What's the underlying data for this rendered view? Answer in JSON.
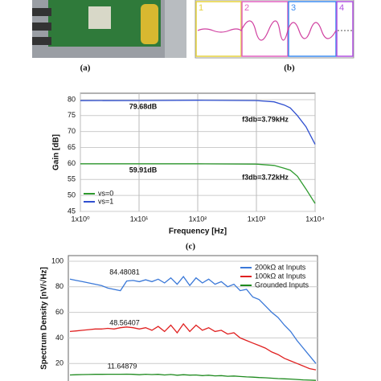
{
  "figure": {
    "panel_labels": [
      "(a)",
      "(b)",
      "(c)"
    ],
    "scope_channels": [
      {
        "label": "1",
        "color": "#e6d23c"
      },
      {
        "label": "2",
        "color": "#e060c0"
      },
      {
        "label": "3",
        "color": "#3c8cf0"
      },
      {
        "label": "4",
        "color": "#b050e0"
      }
    ]
  },
  "chart_data": [
    {
      "type": "line",
      "y_label": "Gain [dB]",
      "x_label": "Frequency [Hz]",
      "log_x": true,
      "grid": true,
      "x": [
        1,
        10,
        100,
        1000,
        2000,
        3000,
        3790,
        5000,
        7000,
        10000
      ],
      "series": [
        {
          "name": "vs=0",
          "color": "#2e9a2e",
          "values": [
            59.91,
            59.9,
            59.9,
            59.8,
            59.4,
            58.5,
            57.9,
            56,
            52,
            47.5
          ]
        },
        {
          "name": "vs=1",
          "color": "#3050d0",
          "values": [
            79.68,
            79.7,
            79.8,
            79.7,
            79.3,
            78.3,
            77.4,
            75,
            71.5,
            66
          ]
        }
      ],
      "xlim": [
        1,
        10000
      ],
      "xticks": [
        {
          "value": 1,
          "label": "1x10⁰"
        },
        {
          "value": 10,
          "label": "1x10¹"
        },
        {
          "value": 100,
          "label": "1x10²"
        },
        {
          "value": 1000,
          "label": "1x10³"
        },
        {
          "value": 10000,
          "label": "1x10⁴"
        }
      ],
      "ylim": [
        45,
        82
      ],
      "yticks": [
        45,
        50,
        55,
        60,
        65,
        70,
        75,
        80
      ],
      "annotations": [
        "79.68dB",
        "59.91dB",
        "f3db=3.79kHz",
        "f3db=3.72kHz"
      ],
      "legend": "lower-left"
    },
    {
      "type": "line",
      "y_label": "Spectrum Density [nV/√Hz]",
      "grid": true,
      "series": [
        {
          "name": "200kΩ at Inputs",
          "color": "#3a78d8",
          "values": [
            86,
            85,
            84,
            83,
            82,
            81,
            79,
            78,
            77,
            84.5,
            85,
            84,
            85.5,
            84,
            86,
            83,
            87,
            82,
            88,
            81,
            87,
            83,
            86,
            82,
            84,
            80,
            82,
            77,
            78,
            72,
            70,
            65,
            60,
            56,
            50,
            45,
            38,
            32,
            26,
            20
          ]
        },
        {
          "name": "100kΩ at Inputs",
          "color": "#e02020",
          "values": [
            45,
            45.5,
            46,
            46.5,
            47,
            47,
            47.5,
            47,
            48,
            48.56,
            48,
            47,
            48,
            46,
            49,
            45,
            50,
            44,
            51,
            45,
            50,
            46,
            48,
            45,
            46,
            43,
            44,
            40,
            38,
            36,
            34,
            32,
            29,
            27,
            24,
            22,
            20,
            18,
            16,
            15
          ]
        },
        {
          "name": "Grounded Inputs",
          "color": "#1e8a1e",
          "values": [
            11,
            11.2,
            11.3,
            11.4,
            11.5,
            11.5,
            11.6,
            11.6,
            11.6,
            11.65,
            11.5,
            11.2,
            11.6,
            11.3,
            11.5,
            11,
            11.4,
            10.8,
            11.2,
            10.9,
            11,
            10.5,
            10.8,
            10.3,
            10.5,
            10,
            10.2,
            9.8,
            9.5,
            9.3,
            9,
            8.8,
            8.5,
            8.2,
            8,
            7.8,
            7.5,
            7.2,
            7,
            6.8
          ]
        }
      ],
      "ylim": [
        0,
        100
      ],
      "yticks": [
        20,
        40,
        60,
        80,
        100
      ],
      "annotations": [
        "84.48081",
        "48.56407",
        "11.64879"
      ],
      "legend": "upper-right"
    }
  ]
}
